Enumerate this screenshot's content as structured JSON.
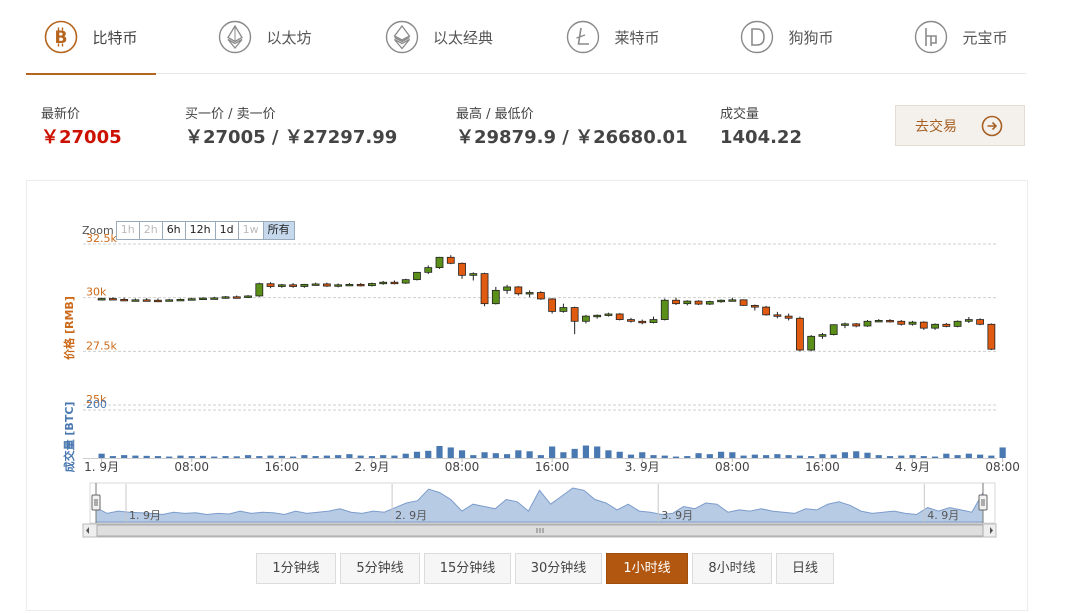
{
  "tabs": [
    {
      "label": "比特币",
      "icon": "bitcoin-icon",
      "active": true
    },
    {
      "label": "以太坊",
      "icon": "ethereum-icon",
      "active": false
    },
    {
      "label": "以太经典",
      "icon": "ethereum-classic-icon",
      "active": false
    },
    {
      "label": "莱特币",
      "icon": "litecoin-icon",
      "active": false
    },
    {
      "label": "狗狗币",
      "icon": "dogecoin-icon",
      "active": false
    },
    {
      "label": "元宝币",
      "icon": "yuanbao-icon",
      "active": false
    }
  ],
  "stats": {
    "latest": {
      "label": "最新价",
      "value": "￥27005"
    },
    "bidask": {
      "label": "买一价 / 卖一价",
      "value": "￥27005 / ￥27297.99"
    },
    "highlow": {
      "label": "最高 / 最低价",
      "value": "￥29879.9 / ￥26680.01"
    },
    "volume": {
      "label": "成交量",
      "value": "1404.22"
    }
  },
  "trade_button": {
    "label": "去交易",
    "icon": "arrow-right-circle-icon"
  },
  "zoom": {
    "label": "Zoom",
    "buttons": [
      {
        "label": "1h",
        "disabled": true
      },
      {
        "label": "2h",
        "disabled": true
      },
      {
        "label": "6h",
        "disabled": false
      },
      {
        "label": "12h",
        "disabled": false
      },
      {
        "label": "1d",
        "disabled": false
      },
      {
        "label": "1w",
        "disabled": true
      },
      {
        "label": "所有",
        "selected": true
      }
    ]
  },
  "periods": [
    {
      "label": "1分钟线"
    },
    {
      "label": "5分钟线"
    },
    {
      "label": "15分钟线"
    },
    {
      "label": "30分钟线"
    },
    {
      "label": "1小时线",
      "selected": true
    },
    {
      "label": "8小时线"
    },
    {
      "label": "日线"
    }
  ],
  "colors": {
    "accent": "#b5651d",
    "up": "#5a8f1a",
    "down": "#e05a10",
    "volume": "#4a78b0",
    "navigator": "#a9bfdc",
    "price_axis": "#cc6a1a",
    "volume_axis": "#4a78b0"
  },
  "chart_data": {
    "type": "candlestick",
    "price_axis": {
      "label": "价格 [RMB]",
      "ticks": [
        "32.5k",
        "30k",
        "27.5k",
        "25k"
      ],
      "tick_values": [
        32500,
        30000,
        27500,
        25000
      ],
      "range": [
        25000,
        32500
      ]
    },
    "volume_axis": {
      "label": "成交量 [BTC]",
      "ticks": [
        "200"
      ],
      "tick_values": [
        200
      ],
      "range": [
        0,
        200
      ]
    },
    "x_labels": [
      "1. 9月",
      "08:00",
      "16:00",
      "2. 9月",
      "08:00",
      "16:00",
      "3. 9月",
      "08:00",
      "16:00",
      "4. 9月",
      "08:00"
    ],
    "x_label_hours": [
      0,
      8,
      16,
      24,
      32,
      40,
      48,
      56,
      64,
      72,
      80
    ],
    "navigator_labels": [
      "1. 9月",
      "2. 9月",
      "3. 9月",
      "4. 9月"
    ],
    "navigator_label_hours": [
      0,
      24,
      48,
      72
    ],
    "candles": [
      {
        "o": 29930,
        "h": 30000,
        "l": 29870,
        "c": 29960
      },
      {
        "o": 29960,
        "h": 30020,
        "l": 29900,
        "c": 29920
      },
      {
        "o": 29920,
        "h": 30000,
        "l": 29860,
        "c": 29880
      },
      {
        "o": 29880,
        "h": 29960,
        "l": 29840,
        "c": 29900
      },
      {
        "o": 29900,
        "h": 29980,
        "l": 29860,
        "c": 29880
      },
      {
        "o": 29880,
        "h": 29960,
        "l": 29820,
        "c": 29860
      },
      {
        "o": 29860,
        "h": 29940,
        "l": 29820,
        "c": 29900
      },
      {
        "o": 29900,
        "h": 29960,
        "l": 29860,
        "c": 29920
      },
      {
        "o": 29920,
        "h": 30000,
        "l": 29880,
        "c": 29950
      },
      {
        "o": 29950,
        "h": 30020,
        "l": 29910,
        "c": 29980
      },
      {
        "o": 29980,
        "h": 30040,
        "l": 29940,
        "c": 29990
      },
      {
        "o": 29990,
        "h": 30080,
        "l": 29950,
        "c": 30040
      },
      {
        "o": 30040,
        "h": 30100,
        "l": 29990,
        "c": 30030
      },
      {
        "o": 30030,
        "h": 30120,
        "l": 29980,
        "c": 30080
      },
      {
        "o": 30080,
        "h": 30700,
        "l": 30040,
        "c": 30650
      },
      {
        "o": 30650,
        "h": 30720,
        "l": 30440,
        "c": 30520
      },
      {
        "o": 30520,
        "h": 30640,
        "l": 30460,
        "c": 30600
      },
      {
        "o": 30600,
        "h": 30680,
        "l": 30460,
        "c": 30520
      },
      {
        "o": 30520,
        "h": 30640,
        "l": 30460,
        "c": 30620
      },
      {
        "o": 30620,
        "h": 30700,
        "l": 30560,
        "c": 30640
      },
      {
        "o": 30640,
        "h": 30700,
        "l": 30500,
        "c": 30540
      },
      {
        "o": 30540,
        "h": 30660,
        "l": 30480,
        "c": 30600
      },
      {
        "o": 30600,
        "h": 30680,
        "l": 30540,
        "c": 30620
      },
      {
        "o": 30620,
        "h": 30680,
        "l": 30520,
        "c": 30560
      },
      {
        "o": 30560,
        "h": 30700,
        "l": 30520,
        "c": 30660
      },
      {
        "o": 30660,
        "h": 30780,
        "l": 30600,
        "c": 30720
      },
      {
        "o": 30720,
        "h": 30800,
        "l": 30620,
        "c": 30680
      },
      {
        "o": 30680,
        "h": 30880,
        "l": 30640,
        "c": 30840
      },
      {
        "o": 30840,
        "h": 31200,
        "l": 30800,
        "c": 31180
      },
      {
        "o": 31180,
        "h": 31500,
        "l": 31100,
        "c": 31400
      },
      {
        "o": 31400,
        "h": 31900,
        "l": 31340,
        "c": 31880
      },
      {
        "o": 31880,
        "h": 31980,
        "l": 31560,
        "c": 31600
      },
      {
        "o": 31600,
        "h": 31640,
        "l": 30880,
        "c": 31040
      },
      {
        "o": 31040,
        "h": 31180,
        "l": 30800,
        "c": 31120
      },
      {
        "o": 31120,
        "h": 31160,
        "l": 29600,
        "c": 29720
      },
      {
        "o": 29720,
        "h": 30500,
        "l": 29680,
        "c": 30340
      },
      {
        "o": 30340,
        "h": 30600,
        "l": 30180,
        "c": 30500
      },
      {
        "o": 30500,
        "h": 30540,
        "l": 30100,
        "c": 30180
      },
      {
        "o": 30180,
        "h": 30340,
        "l": 30020,
        "c": 30240
      },
      {
        "o": 30240,
        "h": 30300,
        "l": 29900,
        "c": 29940
      },
      {
        "o": 29940,
        "h": 29980,
        "l": 29260,
        "c": 29360
      },
      {
        "o": 29360,
        "h": 29720,
        "l": 29300,
        "c": 29540
      },
      {
        "o": 29540,
        "h": 29580,
        "l": 28300,
        "c": 28900
      },
      {
        "o": 28900,
        "h": 29200,
        "l": 28800,
        "c": 29140
      },
      {
        "o": 29140,
        "h": 29220,
        "l": 29020,
        "c": 29180
      },
      {
        "o": 29180,
        "h": 29300,
        "l": 29120,
        "c": 29240
      },
      {
        "o": 29240,
        "h": 29280,
        "l": 28940,
        "c": 28980
      },
      {
        "o": 28980,
        "h": 29060,
        "l": 28840,
        "c": 28900
      },
      {
        "o": 28900,
        "h": 28980,
        "l": 28760,
        "c": 28840
      },
      {
        "o": 28840,
        "h": 29120,
        "l": 28800,
        "c": 28980
      },
      {
        "o": 28980,
        "h": 29960,
        "l": 28940,
        "c": 29880
      },
      {
        "o": 29880,
        "h": 30000,
        "l": 29660,
        "c": 29720
      },
      {
        "o": 29720,
        "h": 29880,
        "l": 29640,
        "c": 29840
      },
      {
        "o": 29840,
        "h": 29880,
        "l": 29660,
        "c": 29700
      },
      {
        "o": 29700,
        "h": 29860,
        "l": 29660,
        "c": 29820
      },
      {
        "o": 29820,
        "h": 29920,
        "l": 29760,
        "c": 29880
      },
      {
        "o": 29880,
        "h": 30000,
        "l": 29840,
        "c": 29900
      },
      {
        "o": 29900,
        "h": 29920,
        "l": 29620,
        "c": 29640
      },
      {
        "o": 29640,
        "h": 29680,
        "l": 29400,
        "c": 29560
      },
      {
        "o": 29560,
        "h": 29620,
        "l": 29160,
        "c": 29200
      },
      {
        "o": 29200,
        "h": 29340,
        "l": 29040,
        "c": 29140
      },
      {
        "o": 29140,
        "h": 29260,
        "l": 28940,
        "c": 29040
      },
      {
        "o": 29040,
        "h": 29120,
        "l": 27500,
        "c": 27560
      },
      {
        "o": 27560,
        "h": 28260,
        "l": 27500,
        "c": 28200
      },
      {
        "o": 28200,
        "h": 28360,
        "l": 28080,
        "c": 28280
      },
      {
        "o": 28280,
        "h": 28760,
        "l": 28240,
        "c": 28740
      },
      {
        "o": 28740,
        "h": 28840,
        "l": 28580,
        "c": 28780
      },
      {
        "o": 28780,
        "h": 28820,
        "l": 28620,
        "c": 28680
      },
      {
        "o": 28680,
        "h": 28960,
        "l": 28640,
        "c": 28900
      },
      {
        "o": 28900,
        "h": 29000,
        "l": 28860,
        "c": 28940
      },
      {
        "o": 28940,
        "h": 29000,
        "l": 28840,
        "c": 28900
      },
      {
        "o": 28900,
        "h": 28960,
        "l": 28700,
        "c": 28760
      },
      {
        "o": 28760,
        "h": 28920,
        "l": 28700,
        "c": 28860
      },
      {
        "o": 28860,
        "h": 28900,
        "l": 28500,
        "c": 28580
      },
      {
        "o": 28580,
        "h": 28800,
        "l": 28500,
        "c": 28760
      },
      {
        "o": 28760,
        "h": 28820,
        "l": 28620,
        "c": 28660
      },
      {
        "o": 28660,
        "h": 28940,
        "l": 28620,
        "c": 28900
      },
      {
        "o": 28900,
        "h": 29100,
        "l": 28820,
        "c": 28980
      },
      {
        "o": 28980,
        "h": 29040,
        "l": 28720,
        "c": 28760
      },
      {
        "o": 28760,
        "h": 28800,
        "l": 27560,
        "c": 27600
      }
    ],
    "volumes": [
      18,
      8,
      12,
      10,
      9,
      8,
      6,
      10,
      8,
      9,
      6,
      8,
      7,
      12,
      8,
      10,
      9,
      6,
      12,
      8,
      10,
      12,
      16,
      10,
      8,
      12,
      10,
      18,
      26,
      30,
      50,
      44,
      32,
      12,
      24,
      20,
      16,
      32,
      28,
      12,
      48,
      24,
      38,
      52,
      48,
      32,
      26,
      14,
      24,
      12,
      10,
      6,
      8,
      20,
      16,
      26,
      24,
      10,
      14,
      12,
      16,
      12,
      10,
      8,
      16,
      14,
      24,
      28,
      22,
      12,
      8,
      10,
      12,
      8,
      6,
      18,
      12,
      18,
      14,
      10,
      44
    ]
  }
}
